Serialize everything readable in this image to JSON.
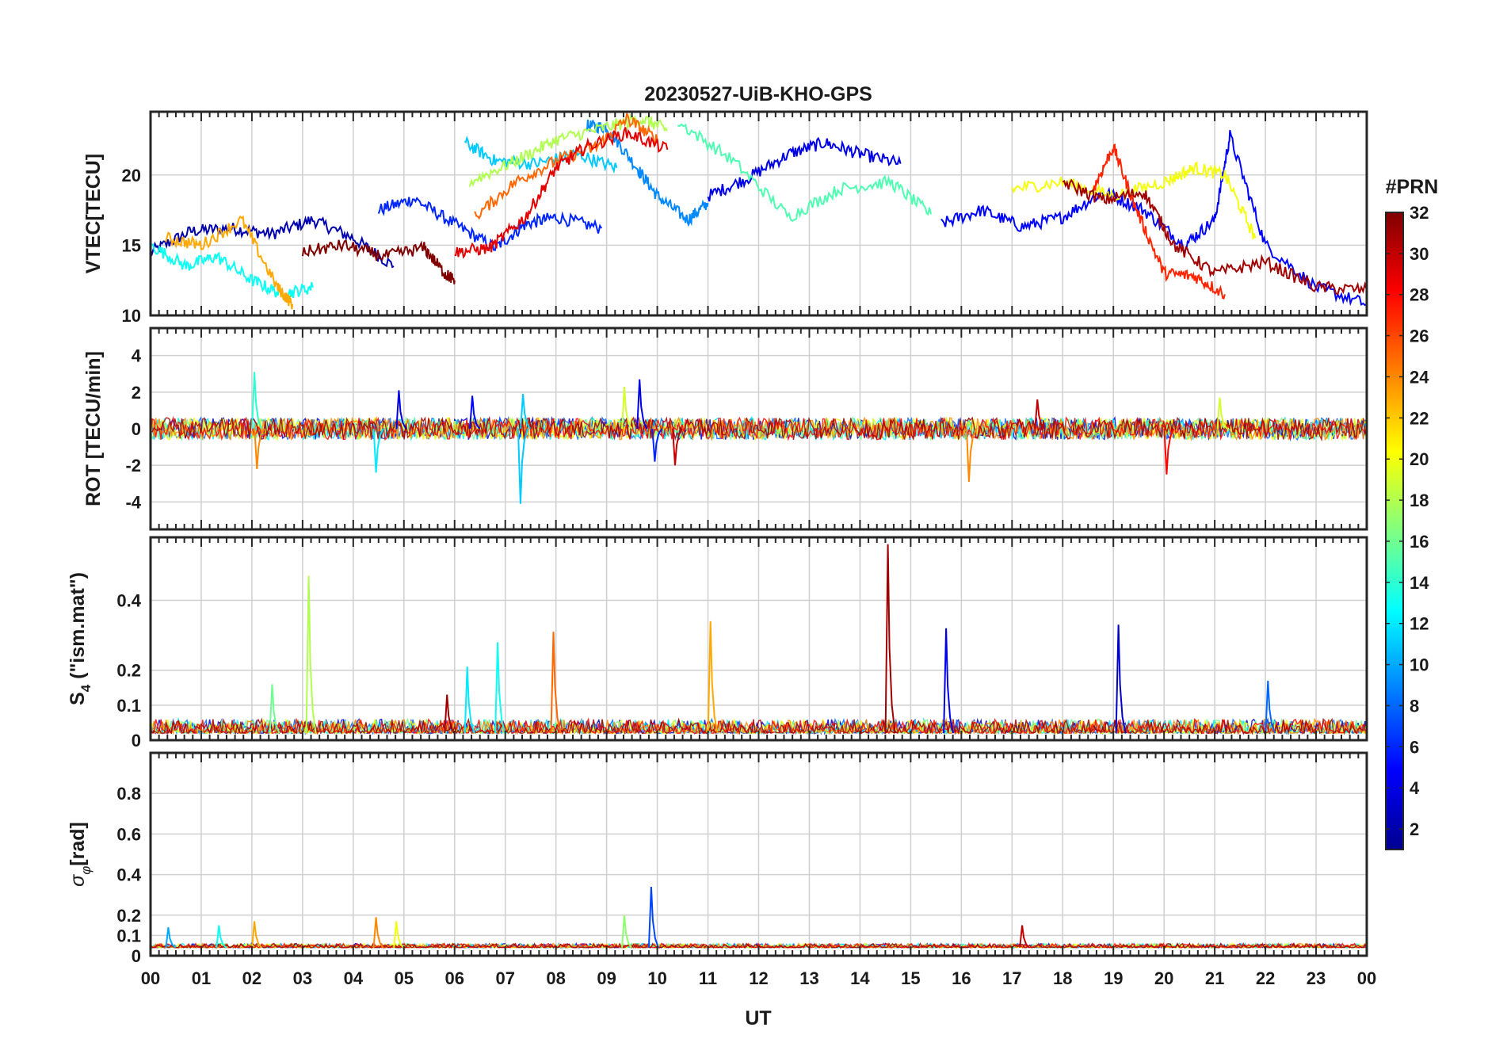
{
  "figure": {
    "title": "20230527-UiB-KHO-GPS",
    "xlabel": "UT"
  },
  "colorbar": {
    "title": "#PRN",
    "ticks": [
      "2",
      "4",
      "6",
      "8",
      "10",
      "12",
      "14",
      "16",
      "18",
      "20",
      "22",
      "24",
      "26",
      "28",
      "30",
      "32"
    ],
    "range": [
      1,
      32
    ],
    "colormap": [
      "#00008f",
      "#0000ff",
      "#0080ff",
      "#00ffff",
      "#80ff80",
      "#ffff00",
      "#ff8000",
      "#ff0000",
      "#800000"
    ]
  },
  "chart_data": [
    {
      "type": "line",
      "title": "20230527-UiB-KHO-GPS",
      "xlabel": "UT",
      "ylabel": "VTEC[TECU]",
      "xlim": [
        0,
        24
      ],
      "ylim": [
        10,
        24.5
      ],
      "yticks": [
        "10",
        "15",
        "20"
      ],
      "xticklabels": [
        "00",
        "01",
        "02",
        "03",
        "04",
        "05",
        "06",
        "07",
        "08",
        "09",
        "10",
        "11",
        "12",
        "13",
        "14",
        "15",
        "16",
        "17",
        "18",
        "19",
        "20",
        "21",
        "22",
        "23",
        "00"
      ],
      "grid": true,
      "series_note": "one line per GPS PRN (1-32), colored by PRN",
      "series": [
        {
          "name": "PRN 2",
          "x": [
            0.0,
            0.8,
            1.6,
            2.4,
            3.2,
            4.0,
            4.8
          ],
          "y": [
            14.5,
            16.0,
            16.2,
            15.8,
            16.8,
            15.5,
            13.5
          ]
        },
        {
          "name": "PRN 6",
          "x": [
            4.5,
            5.2,
            6.0,
            6.8,
            7.4,
            8.0,
            8.9
          ],
          "y": [
            17.5,
            18.3,
            16.5,
            14.8,
            16.5,
            17.0,
            16.2
          ]
        },
        {
          "name": "PRN 9",
          "x": [
            8.6,
            9.0,
            9.6,
            10.0,
            10.6,
            11.0
          ],
          "y": [
            23.5,
            23.4,
            20.5,
            18.5,
            16.8,
            18.0
          ]
        },
        {
          "name": "PRN 4",
          "x": [
            11.0,
            11.8,
            12.6,
            13.3,
            14.0,
            14.8
          ],
          "y": [
            18.5,
            19.8,
            21.5,
            22.3,
            21.5,
            20.8
          ]
        },
        {
          "name": "PRN 5",
          "x": [
            15.6,
            16.4,
            17.2,
            18.0,
            18.8,
            19.6,
            20.4,
            21.0,
            21.3,
            22.0,
            23.0,
            24.0
          ],
          "y": [
            16.5,
            17.5,
            16.3,
            17.0,
            18.8,
            17.5,
            15.0,
            16.8,
            22.8,
            15.0,
            12.0,
            10.8
          ]
        },
        {
          "name": "PRN 11",
          "x": [
            6.2,
            6.8,
            7.6,
            8.4,
            9.2
          ],
          "y": [
            22.3,
            21.0,
            20.8,
            21.5,
            20.5
          ]
        },
        {
          "name": "PRN 13",
          "x": [
            0.0,
            0.7,
            1.3,
            2.0,
            2.6,
            3.2
          ],
          "y": [
            15.0,
            13.5,
            14.2,
            12.5,
            11.5,
            12.0
          ]
        },
        {
          "name": "PRN 15",
          "x": [
            10.4,
            11.5,
            12.6,
            13.6,
            14.6,
            15.4
          ],
          "y": [
            23.8,
            21.0,
            17.0,
            19.0,
            19.5,
            17.2
          ]
        },
        {
          "name": "PRN 18",
          "x": [
            6.3,
            7.2,
            8.0,
            8.9,
            9.7,
            10.2
          ],
          "y": [
            19.5,
            21.0,
            22.5,
            23.3,
            24.0,
            23.2
          ]
        },
        {
          "name": "PRN 20",
          "x": [
            17.0,
            18.0,
            19.0,
            20.0,
            20.6,
            21.2,
            21.8
          ],
          "y": [
            19.0,
            19.5,
            18.5,
            19.5,
            20.5,
            20.0,
            15.5
          ]
        },
        {
          "name": "PRN 23",
          "x": [
            0.3,
            1.0,
            1.8,
            2.5,
            2.8
          ],
          "y": [
            15.5,
            15.0,
            16.8,
            12.0,
            10.8
          ]
        },
        {
          "name": "PRN 25",
          "x": [
            6.4,
            7.2,
            8.0,
            8.8,
            9.4,
            10.0
          ],
          "y": [
            17.0,
            19.5,
            21.0,
            22.0,
            24.0,
            22.5
          ]
        },
        {
          "name": "PRN 27",
          "x": [
            18.6,
            19.0,
            19.4,
            20.0,
            20.6,
            21.2
          ],
          "y": [
            19.0,
            22.0,
            18.0,
            13.0,
            12.8,
            11.5
          ]
        },
        {
          "name": "PRN 29",
          "x": [
            6.0,
            6.7,
            7.4,
            8.0,
            8.6,
            9.4,
            10.2
          ],
          "y": [
            14.5,
            14.8,
            17.0,
            20.5,
            22.0,
            23.0,
            21.8
          ]
        },
        {
          "name": "PRN 31",
          "x": [
            18.0,
            18.8,
            19.6,
            20.2,
            21.0,
            22.0,
            23.0,
            24.0
          ],
          "y": [
            19.5,
            18.2,
            18.8,
            15.0,
            13.0,
            13.8,
            12.0,
            11.8
          ]
        },
        {
          "name": "PRN 32",
          "x": [
            3.0,
            3.8,
            4.6,
            5.4,
            5.8,
            6.0
          ],
          "y": [
            14.5,
            15.0,
            14.2,
            14.8,
            13.0,
            12.5
          ]
        }
      ]
    },
    {
      "type": "line",
      "ylabel": "ROT [TECU/min]",
      "xlim": [
        0,
        24
      ],
      "ylim": [
        -5.5,
        5.5
      ],
      "yticks": [
        "-4",
        "-2",
        "0",
        "2",
        "4"
      ],
      "grid": true,
      "baseline": 0,
      "noise_amplitude": 0.6,
      "spikes": [
        {
          "x": 2.05,
          "y": 3.1,
          "prn": 14
        },
        {
          "x": 2.1,
          "y": -2.2,
          "prn": 24
        },
        {
          "x": 4.45,
          "y": -2.4,
          "prn": 12
        },
        {
          "x": 4.9,
          "y": 2.1,
          "prn": 4
        },
        {
          "x": 6.35,
          "y": 1.8,
          "prn": 5
        },
        {
          "x": 7.3,
          "y": -4.1,
          "prn": 11
        },
        {
          "x": 7.35,
          "y": 1.9,
          "prn": 11
        },
        {
          "x": 9.35,
          "y": 2.3,
          "prn": 19
        },
        {
          "x": 9.65,
          "y": 2.7,
          "prn": 4
        },
        {
          "x": 9.95,
          "y": -1.8,
          "prn": 6
        },
        {
          "x": 10.35,
          "y": -2.0,
          "prn": 30
        },
        {
          "x": 16.15,
          "y": -2.9,
          "prn": 24
        },
        {
          "x": 17.5,
          "y": 1.6,
          "prn": 30
        },
        {
          "x": 20.05,
          "y": -2.5,
          "prn": 28
        },
        {
          "x": 21.1,
          "y": 1.7,
          "prn": 19
        }
      ]
    },
    {
      "type": "line",
      "ylabel": "S4 (\"ism.mat\")",
      "ylabel_main": "S",
      "ylabel_sub": "4",
      "ylabel_rest": " (\"ism.mat\")",
      "xlim": [
        0,
        24
      ],
      "ylim": [
        0,
        0.58
      ],
      "yticks": [
        "0",
        "0.1",
        "0.2",
        "0.4"
      ],
      "grid": true,
      "baseline": 0.02,
      "noise_amplitude": 0.04,
      "spikes": [
        {
          "x": 2.4,
          "y": 0.16,
          "prn": 16
        },
        {
          "x": 3.12,
          "y": 0.47,
          "prn": 18
        },
        {
          "x": 5.85,
          "y": 0.13,
          "prn": 31
        },
        {
          "x": 6.25,
          "y": 0.21,
          "prn": 12
        },
        {
          "x": 6.85,
          "y": 0.28,
          "prn": 13
        },
        {
          "x": 7.95,
          "y": 0.31,
          "prn": 25
        },
        {
          "x": 11.05,
          "y": 0.34,
          "prn": 23
        },
        {
          "x": 14.55,
          "y": 0.56,
          "prn": 31
        },
        {
          "x": 15.7,
          "y": 0.32,
          "prn": 4
        },
        {
          "x": 19.1,
          "y": 0.33,
          "prn": 3
        },
        {
          "x": 22.05,
          "y": 0.17,
          "prn": 8
        }
      ]
    },
    {
      "type": "line",
      "ylabel": "σφ[rad]",
      "ylabel_main": "σ",
      "ylabel_sub": "φ",
      "ylabel_rest": "[rad]",
      "xlim": [
        0,
        24
      ],
      "ylim": [
        0,
        1.0
      ],
      "yticks": [
        "0",
        "0.1",
        "0.2",
        "0.4",
        "0.6",
        "0.8"
      ],
      "grid": true,
      "baseline": 0.04,
      "noise_amplitude": 0.02,
      "spikes": [
        {
          "x": 0.35,
          "y": 0.14,
          "prn": 10
        },
        {
          "x": 1.35,
          "y": 0.15,
          "prn": 13
        },
        {
          "x": 2.05,
          "y": 0.17,
          "prn": 23
        },
        {
          "x": 4.45,
          "y": 0.19,
          "prn": 24
        },
        {
          "x": 4.85,
          "y": 0.17,
          "prn": 20
        },
        {
          "x": 9.35,
          "y": 0.2,
          "prn": 17
        },
        {
          "x": 9.88,
          "y": 0.34,
          "prn": 7
        },
        {
          "x": 17.2,
          "y": 0.15,
          "prn": 30
        }
      ]
    }
  ]
}
